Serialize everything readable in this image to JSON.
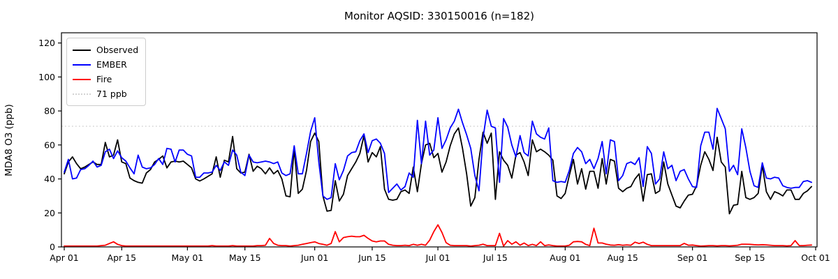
{
  "title": "Monitor AQSID: 330150016 (n=182)",
  "ylabel": "MDA8 O3 (ppb)",
  "colors": {
    "observed": "#000000",
    "ember": "#0000ff",
    "fire": "#ff0000",
    "reference": "#d3d3d3",
    "spine": "#000000"
  },
  "chart_data": {
    "type": "line",
    "title": "Monitor AQSID: 330150016 (n=182)",
    "xlabel": "",
    "ylabel": "MDA8 O3 (ppb)",
    "grid": false,
    "legend_position": "upper left",
    "ylim": [
      0,
      126
    ],
    "y_ticks": [
      0,
      20,
      40,
      60,
      80,
      100,
      120
    ],
    "x_unit": "daily values, day 0 = Apr 01",
    "x_ticks": [
      {
        "day": 0,
        "label": "Apr 01"
      },
      {
        "day": 14,
        "label": "Apr 15"
      },
      {
        "day": 30,
        "label": "May 01"
      },
      {
        "day": 44,
        "label": "May 15"
      },
      {
        "day": 61,
        "label": "Jun 01"
      },
      {
        "day": 75,
        "label": "Jun 15"
      },
      {
        "day": 91,
        "label": "Jul 01"
      },
      {
        "day": 105,
        "label": "Jul 15"
      },
      {
        "day": 122,
        "label": "Aug 01"
      },
      {
        "day": 136,
        "label": "Aug 15"
      },
      {
        "day": 153,
        "label": "Sep 01"
      },
      {
        "day": 167,
        "label": "Sep 15"
      },
      {
        "day": 183,
        "label": "Oct 01"
      }
    ],
    "reference_line": {
      "value": 71,
      "label": "71 ppb",
      "style": "dotted",
      "color": "#d3d3d3"
    },
    "series": [
      {
        "name": "Observed",
        "color": "#000000",
        "values": [
          43,
          50,
          53,
          49,
          46,
          47,
          48.5,
          50,
          48.5,
          48.5,
          61.5,
          53,
          54,
          63,
          50,
          49,
          40.5,
          39,
          38,
          37.5,
          43.5,
          45.5,
          50,
          51.5,
          53.5,
          46.5,
          50,
          50.5,
          50,
          50.5,
          48.5,
          46.5,
          40,
          38.8,
          40,
          41.5,
          43,
          53,
          41,
          51,
          50,
          65,
          46,
          43.5,
          44,
          54.5,
          44.5,
          47.5,
          46,
          43,
          46.5,
          43,
          45,
          40,
          30,
          29.5,
          57.5,
          31.5,
          34,
          45,
          62,
          67,
          62,
          30,
          21,
          21.5,
          39,
          27,
          31,
          42,
          46,
          50,
          55,
          65.5,
          50,
          55.5,
          53,
          59,
          34,
          28,
          27.5,
          28,
          32.5,
          33.5,
          31.5,
          47,
          32.5,
          49,
          60,
          61,
          52.5,
          55,
          44,
          50,
          59.5,
          66.5,
          70,
          58,
          43,
          24,
          29,
          51.5,
          67.5,
          61,
          67,
          28,
          56,
          51,
          48,
          40.5,
          54,
          55.5,
          50,
          42,
          63,
          56,
          57.5,
          56,
          54,
          51,
          30,
          28.5,
          31.5,
          42,
          51.5,
          37,
          46,
          34,
          44.5,
          44.5,
          34.5,
          52,
          37,
          51.5,
          50.5,
          34.5,
          32.5,
          34.5,
          35.5,
          40,
          43,
          27,
          42.5,
          43,
          31.5,
          33,
          50,
          37,
          30.5,
          24,
          23,
          27,
          30.5,
          31,
          36,
          48,
          56,
          51.5,
          45,
          64.5,
          50,
          47,
          19.5,
          24.5,
          25,
          44.5,
          29,
          28,
          29,
          31.5,
          48,
          32.5,
          28,
          32.5,
          31.5,
          30,
          33.5,
          33.5,
          28,
          28,
          31.5,
          33,
          35.5
        ]
      },
      {
        "name": "EMBER",
        "color": "#0000ff",
        "values": [
          44,
          51.5,
          40,
          40.5,
          45.5,
          46,
          48,
          50.5,
          47,
          48,
          56,
          57.5,
          52,
          56.5,
          52.5,
          50.5,
          46.5,
          43,
          54,
          47,
          46,
          46.5,
          48.5,
          52,
          48.5,
          58,
          57.5,
          50,
          57,
          57,
          54.5,
          53.5,
          41,
          41,
          43.5,
          43.5,
          44,
          48,
          45,
          50,
          48,
          57,
          54,
          44,
          42,
          54,
          50,
          49.5,
          50,
          50.5,
          50,
          49,
          50,
          43.5,
          42,
          43,
          59.5,
          43,
          43,
          55,
          68,
          76,
          50,
          30,
          28,
          29,
          49,
          39.5,
          45,
          53.5,
          55.5,
          56,
          62.5,
          66.5,
          55.5,
          62.5,
          63.5,
          61,
          55,
          32,
          34.5,
          37,
          33.5,
          35.5,
          43.5,
          41,
          74.5,
          49,
          74,
          54,
          57,
          76,
          58,
          63,
          70,
          74,
          81,
          73,
          66,
          58,
          42,
          33,
          64,
          80.5,
          71,
          70,
          38,
          75.5,
          70.5,
          60,
          53,
          65.5,
          55.5,
          53.5,
          74,
          66.5,
          64.5,
          63.5,
          70,
          39,
          38,
          38.5,
          38,
          45,
          55,
          58.5,
          56,
          49,
          51.5,
          46,
          52,
          62,
          43,
          63,
          62,
          39,
          42,
          49,
          50,
          48.5,
          52.5,
          35.5,
          59,
          55,
          37,
          40,
          56,
          46,
          48,
          39,
          44.5,
          45.5,
          40,
          35.5,
          35,
          59.5,
          67.5,
          67.5,
          57.5,
          81.5,
          75.5,
          69.5,
          44.5,
          48,
          42.5,
          69.5,
          58.5,
          44.5,
          36,
          35,
          49.5,
          40.5,
          40,
          41,
          40.5,
          36,
          35,
          34.5,
          35,
          35,
          38.5,
          39,
          38
        ]
      },
      {
        "name": "Fire",
        "color": "#ff0000",
        "values": [
          0.5,
          0.5,
          0.5,
          0.5,
          0.5,
          0.5,
          0.5,
          0.5,
          0.5,
          0.8,
          1,
          2,
          3,
          1.5,
          0.8,
          0.5,
          0.5,
          0.5,
          0.5,
          0.5,
          0.5,
          0.5,
          0.5,
          0.5,
          0.5,
          0.5,
          0.5,
          0.5,
          0.5,
          0.5,
          0.5,
          0.5,
          0.5,
          0.5,
          0.5,
          0.5,
          0.8,
          0.5,
          0.5,
          0.5,
          0.5,
          0.8,
          0.5,
          0.5,
          0.5,
          0.5,
          0.5,
          0.8,
          0.8,
          1,
          5,
          2,
          1,
          0.8,
          0.8,
          0.5,
          0.8,
          1,
          1.5,
          2,
          2.5,
          3,
          2,
          1.5,
          1,
          2,
          9,
          3,
          5.5,
          6,
          6.3,
          6,
          6,
          6.8,
          5,
          3.5,
          3,
          3.5,
          3.5,
          1.5,
          1,
          0.8,
          0.8,
          1,
          0.8,
          1.5,
          1,
          1.5,
          1,
          4,
          9,
          13,
          8.5,
          2.5,
          1,
          0.8,
          0.8,
          0.8,
          0.8,
          0.5,
          0.8,
          1,
          1.6,
          0.8,
          0.8,
          0.8,
          8,
          0.5,
          3.7,
          1.6,
          3,
          1,
          2.3,
          0.8,
          1.5,
          0.8,
          3,
          0.8,
          1.2,
          0.8,
          0.5,
          0.5,
          0.5,
          1,
          3,
          3.2,
          3,
          1.5,
          0.8,
          11,
          2.3,
          2.3,
          1.6,
          1.1,
          1,
          1.3,
          1,
          1.2,
          1,
          2.8,
          2,
          2.8,
          1.5,
          0.8,
          0.8,
          0.8,
          0.8,
          0.8,
          0.8,
          0.8,
          0.8,
          2.1,
          1,
          1.1,
          0.8,
          0.5,
          0.6,
          0.8,
          0.8,
          0.6,
          0.8,
          0.8,
          0.6,
          0.8,
          1,
          1.6,
          1.6,
          1.5,
          1.3,
          1.2,
          1.3,
          1.2,
          1,
          0.8,
          0.8,
          0.8,
          0.6,
          0.8,
          3.7,
          0.8,
          0.8,
          1,
          1.1
        ]
      }
    ]
  },
  "legend": {
    "items": [
      {
        "label": "Observed",
        "color": "#000000",
        "style": "solid"
      },
      {
        "label": "EMBER",
        "color": "#0000ff",
        "style": "solid"
      },
      {
        "label": "Fire",
        "color": "#ff0000",
        "style": "solid"
      },
      {
        "label": "71 ppb",
        "color": "#d3d3d3",
        "style": "dotted"
      }
    ]
  }
}
